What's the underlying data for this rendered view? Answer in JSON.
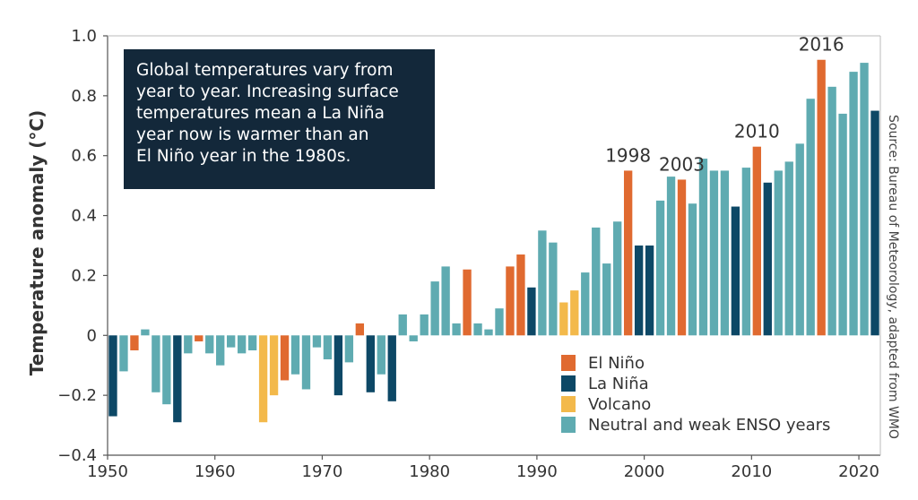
{
  "chart_data": {
    "type": "bar",
    "ylabel": "Temperature anomaly (°C)",
    "xlabel": "",
    "ylim": [
      -0.4,
      1.0
    ],
    "xlim": [
      1950,
      2022
    ],
    "y_ticks": [
      "1.0",
      "0.8",
      "0.6",
      "0.4",
      "0.2",
      "0",
      "−0.2",
      "−0.4"
    ],
    "x_ticks": [
      "1950",
      "1960",
      "1970",
      "1980",
      "1990",
      "2000",
      "2010",
      "2020"
    ],
    "grid": false,
    "legend_position": "bottom-right",
    "colors": {
      "el_nino": "#e06a30",
      "la_nina": "#0d4866",
      "volcano": "#f3b94b",
      "neutral": "#5fabb1"
    },
    "legend": [
      {
        "label": "El Niño",
        "category": "el_nino"
      },
      {
        "label": "La Niña",
        "category": "la_nina"
      },
      {
        "label": "Volcano",
        "category": "volcano"
      },
      {
        "label": "Neutral and weak ENSO years",
        "category": "neutral"
      }
    ],
    "bars": [
      {
        "year": 1950,
        "value": -0.27,
        "category": "la_nina"
      },
      {
        "year": 1951,
        "value": -0.12,
        "category": "neutral"
      },
      {
        "year": 1952,
        "value": -0.05,
        "category": "el_nino"
      },
      {
        "year": 1953,
        "value": 0.02,
        "category": "neutral"
      },
      {
        "year": 1954,
        "value": -0.19,
        "category": "neutral"
      },
      {
        "year": 1955,
        "value": -0.23,
        "category": "neutral"
      },
      {
        "year": 1956,
        "value": -0.29,
        "category": "la_nina"
      },
      {
        "year": 1957,
        "value": -0.06,
        "category": "neutral"
      },
      {
        "year": 1958,
        "value": -0.02,
        "category": "el_nino"
      },
      {
        "year": 1959,
        "value": -0.06,
        "category": "neutral"
      },
      {
        "year": 1960,
        "value": -0.1,
        "category": "neutral"
      },
      {
        "year": 1961,
        "value": -0.04,
        "category": "neutral"
      },
      {
        "year": 1962,
        "value": -0.06,
        "category": "neutral"
      },
      {
        "year": 1963,
        "value": -0.05,
        "category": "neutral"
      },
      {
        "year": 1964,
        "value": -0.29,
        "category": "volcano"
      },
      {
        "year": 1965,
        "value": -0.2,
        "category": "volcano"
      },
      {
        "year": 1966,
        "value": -0.15,
        "category": "el_nino"
      },
      {
        "year": 1967,
        "value": -0.13,
        "category": "neutral"
      },
      {
        "year": 1968,
        "value": -0.18,
        "category": "neutral"
      },
      {
        "year": 1969,
        "value": -0.04,
        "category": "neutral"
      },
      {
        "year": 1970,
        "value": -0.08,
        "category": "neutral"
      },
      {
        "year": 1971,
        "value": -0.2,
        "category": "la_nina"
      },
      {
        "year": 1972,
        "value": -0.09,
        "category": "neutral"
      },
      {
        "year": 1973,
        "value": 0.04,
        "category": "el_nino"
      },
      {
        "year": 1974,
        "value": -0.19,
        "category": "la_nina"
      },
      {
        "year": 1975,
        "value": -0.13,
        "category": "neutral"
      },
      {
        "year": 1976,
        "value": -0.22,
        "category": "la_nina"
      },
      {
        "year": 1977,
        "value": 0.07,
        "category": "neutral"
      },
      {
        "year": 1978,
        "value": -0.02,
        "category": "neutral"
      },
      {
        "year": 1979,
        "value": 0.07,
        "category": "neutral"
      },
      {
        "year": 1980,
        "value": 0.18,
        "category": "neutral"
      },
      {
        "year": 1981,
        "value": 0.23,
        "category": "neutral"
      },
      {
        "year": 1982,
        "value": 0.04,
        "category": "neutral"
      },
      {
        "year": 1983,
        "value": 0.22,
        "category": "el_nino"
      },
      {
        "year": 1984,
        "value": 0.04,
        "category": "neutral"
      },
      {
        "year": 1985,
        "value": 0.02,
        "category": "neutral"
      },
      {
        "year": 1986,
        "value": 0.09,
        "category": "neutral"
      },
      {
        "year": 1987,
        "value": 0.23,
        "category": "el_nino"
      },
      {
        "year": 1988,
        "value": 0.27,
        "category": "el_nino"
      },
      {
        "year": 1989,
        "value": 0.16,
        "category": "la_nina"
      },
      {
        "year": 1990,
        "value": 0.35,
        "category": "neutral"
      },
      {
        "year": 1991,
        "value": 0.31,
        "category": "neutral"
      },
      {
        "year": 1992,
        "value": 0.11,
        "category": "volcano"
      },
      {
        "year": 1993,
        "value": 0.15,
        "category": "volcano"
      },
      {
        "year": 1994,
        "value": 0.21,
        "category": "neutral"
      },
      {
        "year": 1995,
        "value": 0.36,
        "category": "neutral"
      },
      {
        "year": 1996,
        "value": 0.24,
        "category": "neutral"
      },
      {
        "year": 1997,
        "value": 0.38,
        "category": "neutral"
      },
      {
        "year": 1998,
        "value": 0.55,
        "category": "el_nino"
      },
      {
        "year": 1999,
        "value": 0.3,
        "category": "la_nina"
      },
      {
        "year": 2000,
        "value": 0.3,
        "category": "la_nina"
      },
      {
        "year": 2001,
        "value": 0.45,
        "category": "neutral"
      },
      {
        "year": 2002,
        "value": 0.53,
        "category": "neutral"
      },
      {
        "year": 2003,
        "value": 0.52,
        "category": "el_nino"
      },
      {
        "year": 2004,
        "value": 0.44,
        "category": "neutral"
      },
      {
        "year": 2005,
        "value": 0.59,
        "category": "neutral"
      },
      {
        "year": 2006,
        "value": 0.55,
        "category": "neutral"
      },
      {
        "year": 2007,
        "value": 0.55,
        "category": "neutral"
      },
      {
        "year": 2008,
        "value": 0.43,
        "category": "la_nina"
      },
      {
        "year": 2009,
        "value": 0.56,
        "category": "neutral"
      },
      {
        "year": 2010,
        "value": 0.63,
        "category": "el_nino"
      },
      {
        "year": 2011,
        "value": 0.51,
        "category": "la_nina"
      },
      {
        "year": 2012,
        "value": 0.55,
        "category": "neutral"
      },
      {
        "year": 2013,
        "value": 0.58,
        "category": "neutral"
      },
      {
        "year": 2014,
        "value": 0.64,
        "category": "neutral"
      },
      {
        "year": 2015,
        "value": 0.79,
        "category": "neutral"
      },
      {
        "year": 2016,
        "value": 0.92,
        "category": "el_nino"
      },
      {
        "year": 2017,
        "value": 0.83,
        "category": "neutral"
      },
      {
        "year": 2018,
        "value": 0.74,
        "category": "neutral"
      },
      {
        "year": 2019,
        "value": 0.88,
        "category": "neutral"
      },
      {
        "year": 2020,
        "value": 0.91,
        "category": "neutral"
      },
      {
        "year": 2021,
        "value": 0.75,
        "category": "la_nina"
      }
    ],
    "annotations": [
      {
        "label": "1998",
        "year": 1998,
        "value": 0.55
      },
      {
        "label": "2003",
        "year": 2003,
        "value": 0.52
      },
      {
        "label": "2010",
        "year": 2010,
        "value": 0.63
      },
      {
        "label": "2016",
        "year": 2016,
        "value": 0.92
      }
    ],
    "callout_lines": [
      "Global temperatures vary from",
      "year to year. Increasing surface",
      "temperatures mean a La Niña",
      "year now is warmer than an",
      "El Niño year in the 1980s."
    ],
    "source": "Source: Bureau of Meteorology, adapted from WMO"
  }
}
